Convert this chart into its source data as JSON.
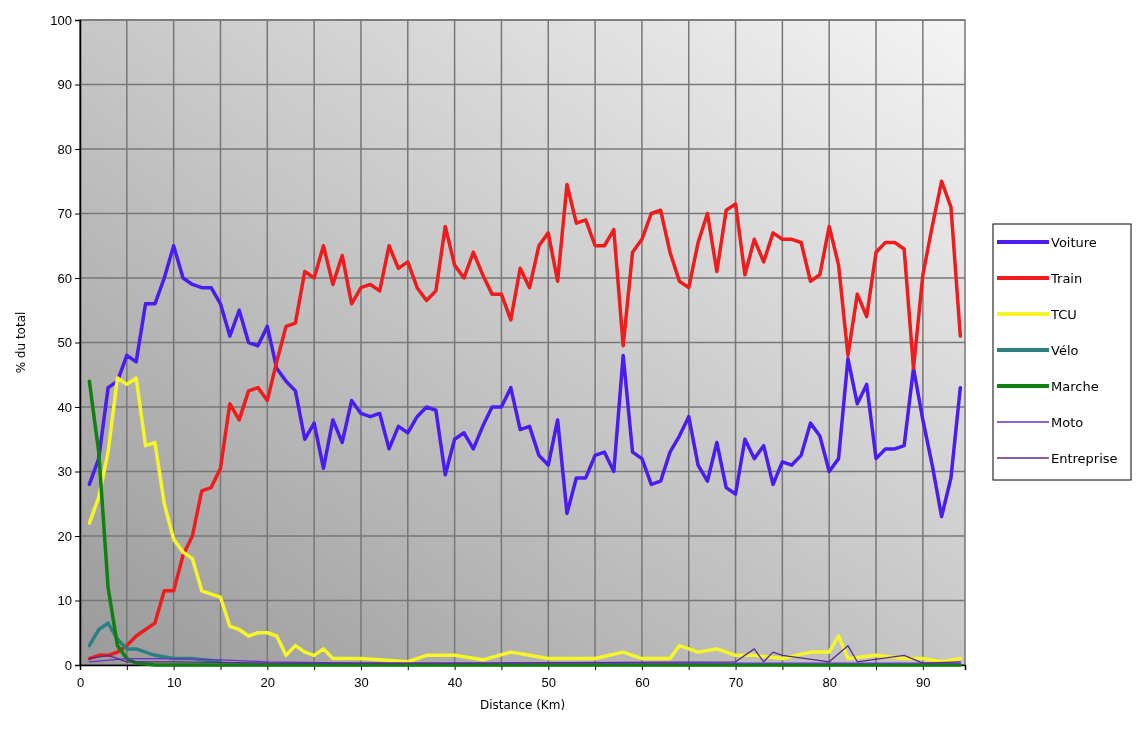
{
  "chart_data": {
    "type": "line",
    "xlabel": "Distance (Km)",
    "ylabel": "% du total",
    "xlim": [
      0,
      94.5
    ],
    "ylim": [
      0,
      100
    ],
    "xticks": [
      0,
      {
        "value": 5,
        "label": null
      },
      10,
      {
        "value": 15,
        "label": null
      },
      20,
      {
        "value": 25,
        "label": null
      },
      30,
      {
        "value": 35,
        "label": null
      },
      40,
      {
        "value": 45,
        "label": null
      },
      50,
      {
        "value": 55,
        "label": null
      },
      60,
      {
        "value": 65,
        "label": null
      },
      70,
      {
        "value": 75,
        "label": null
      },
      80,
      {
        "value": 85,
        "label": null
      },
      90
    ],
    "yticks": [
      0,
      10,
      20,
      30,
      40,
      50,
      60,
      70,
      80,
      90,
      100
    ],
    "grid": true,
    "legend": "right",
    "marker": "none",
    "line_style": "solid",
    "series": [
      {
        "name": "Voiture",
        "color": "#4b1cf0",
        "x": [
          1,
          2,
          3,
          4,
          5,
          6,
          7,
          8,
          9,
          10,
          11,
          12,
          13,
          14,
          15,
          16,
          17,
          18,
          19,
          20,
          21,
          22,
          23,
          24,
          25,
          26,
          27,
          28,
          29,
          30,
          31,
          32,
          33,
          34,
          35,
          36,
          37,
          38,
          39,
          40,
          41,
          42,
          43,
          44,
          45,
          46,
          47,
          48,
          49,
          50,
          51,
          52,
          53,
          54,
          55,
          56,
          57,
          58,
          59,
          60,
          61,
          62,
          63,
          64,
          65,
          66,
          67,
          68,
          69,
          70,
          71,
          72,
          73,
          74,
          75,
          76,
          77,
          78,
          79,
          80,
          81,
          82,
          83,
          84,
          85,
          86,
          87,
          88,
          89,
          90,
          91,
          92,
          93,
          94
        ],
        "values": [
          28,
          32,
          43,
          44,
          48,
          47,
          56,
          56,
          60,
          65,
          60,
          59,
          58.5,
          58.5,
          56,
          51,
          55,
          50,
          49.5,
          52.5,
          46,
          44,
          42.5,
          35,
          37.5,
          30.5,
          38,
          34.5,
          41,
          39,
          38.5,
          39,
          33.5,
          37,
          36,
          38.5,
          40,
          39.5,
          29.5,
          35,
          36,
          33.5,
          37,
          40,
          40,
          43,
          36.5,
          37,
          32.5,
          31,
          38,
          23.5,
          29,
          29,
          32.5,
          33,
          30,
          48,
          33,
          32,
          28,
          28.5,
          33,
          35.5,
          38.5,
          31,
          28.5,
          34.5,
          27.5,
          26.5,
          35,
          32,
          34,
          28,
          31.5,
          31,
          32.5,
          37.5,
          35.5,
          30,
          32,
          47.5,
          40.5,
          43.5,
          32,
          33.5,
          33.5,
          34,
          46,
          38,
          31,
          23,
          29,
          43
        ]
      },
      {
        "name": "Train",
        "color": "#ee1c1c",
        "x": [
          1,
          2,
          3,
          4,
          5,
          6,
          7,
          8,
          9,
          10,
          11,
          12,
          13,
          14,
          15,
          16,
          17,
          18,
          19,
          20,
          21,
          22,
          23,
          24,
          25,
          26,
          27,
          28,
          29,
          30,
          31,
          32,
          33,
          34,
          35,
          36,
          37,
          38,
          39,
          40,
          41,
          42,
          43,
          44,
          45,
          46,
          47,
          48,
          49,
          50,
          51,
          52,
          53,
          54,
          55,
          56,
          57,
          58,
          59,
          60,
          61,
          62,
          63,
          64,
          65,
          66,
          67,
          68,
          69,
          70,
          71,
          72,
          73,
          74,
          75,
          76,
          77,
          78,
          79,
          80,
          81,
          82,
          83,
          84,
          85,
          86,
          87,
          88,
          89,
          90,
          91,
          92,
          93,
          94
        ],
        "values": [
          1,
          1.5,
          1.5,
          2,
          3,
          4.5,
          5.5,
          6.5,
          11.5,
          11.5,
          17,
          20,
          27,
          27.5,
          30.5,
          40.5,
          38,
          42.5,
          43,
          41,
          47,
          52.5,
          53,
          61,
          60,
          65,
          59,
          63.5,
          56,
          58.5,
          59,
          58,
          65,
          61.5,
          62.5,
          58.5,
          56.5,
          58,
          68,
          62,
          60,
          64,
          60.5,
          57.5,
          57.5,
          53.5,
          61.5,
          58.5,
          65,
          67,
          59.5,
          74.5,
          68.5,
          69,
          65,
          65,
          67.5,
          49.5,
          64,
          66,
          70,
          70.5,
          64,
          59.5,
          58.5,
          65.5,
          70,
          61,
          70.5,
          71.5,
          60.5,
          66,
          62.5,
          67,
          66,
          66,
          65.5,
          59.5,
          60.5,
          68,
          62,
          48,
          57.5,
          54,
          64,
          65.5,
          65.5,
          64.5,
          46,
          60.5,
          68,
          75,
          71,
          51
        ]
      },
      {
        "name": "TCU",
        "color": "#f5f52a",
        "x": [
          1,
          2,
          3,
          4,
          5,
          6,
          7,
          8,
          9,
          10,
          11,
          12,
          13,
          14,
          15,
          16,
          17,
          18,
          19,
          20,
          21,
          22,
          23,
          24,
          25,
          26,
          27,
          28,
          30,
          32,
          35,
          37,
          40,
          43,
          46,
          48,
          50,
          55,
          58,
          60,
          63,
          64,
          66,
          68,
          70,
          72,
          75,
          78,
          80,
          81,
          82,
          85,
          88,
          90,
          92,
          94
        ],
        "values": [
          22,
          26,
          33,
          44.5,
          43.5,
          44.5,
          34,
          34.5,
          25,
          19.5,
          17.5,
          16.5,
          11.5,
          11,
          10.5,
          6,
          5.5,
          4.5,
          5,
          5,
          4.5,
          1.5,
          3,
          2,
          1.5,
          2.5,
          1,
          1,
          1,
          0.8,
          0.5,
          1.5,
          1.5,
          0.8,
          2,
          1.5,
          1,
          1,
          2,
          1,
          1,
          3,
          2,
          2.5,
          1.5,
          1.5,
          1,
          2,
          2,
          4.5,
          1,
          1.5,
          1,
          1,
          0.5,
          1
        ]
      },
      {
        "name": "Vélo",
        "color": "#2e8080",
        "x": [
          1,
          2,
          3,
          4,
          5,
          6,
          7,
          8,
          10,
          12,
          15
        ],
        "values": [
          3,
          5.5,
          6.5,
          4,
          2.5,
          2.5,
          2,
          1.5,
          1,
          1,
          0.5
        ]
      },
      {
        "name": "Marche",
        "color": "#108010",
        "x": [
          1,
          2,
          3,
          4,
          5,
          6,
          8,
          94
        ],
        "values": [
          44,
          33,
          12,
          3,
          1,
          0.3,
          0,
          0
        ]
      },
      {
        "name": "Moto",
        "color": "#6633cc",
        "x": [
          1,
          5,
          10,
          15,
          20,
          30,
          50,
          70,
          94
        ],
        "values": [
          0.5,
          1,
          1,
          0.8,
          0.5,
          0.3,
          0.3,
          0.3,
          0.3
        ]
      },
      {
        "name": "Entreprise",
        "color": "#5a2a8a",
        "x": [
          1,
          3,
          5,
          10,
          20,
          40,
          70,
          72,
          73,
          74,
          75,
          80,
          82,
          83,
          88,
          90,
          94
        ],
        "values": [
          1,
          1.5,
          0.5,
          0.5,
          0.3,
          0.3,
          0.5,
          2.5,
          0.5,
          2,
          1.5,
          0.5,
          3,
          0.5,
          1.5,
          0.3,
          0.5
        ]
      }
    ]
  }
}
